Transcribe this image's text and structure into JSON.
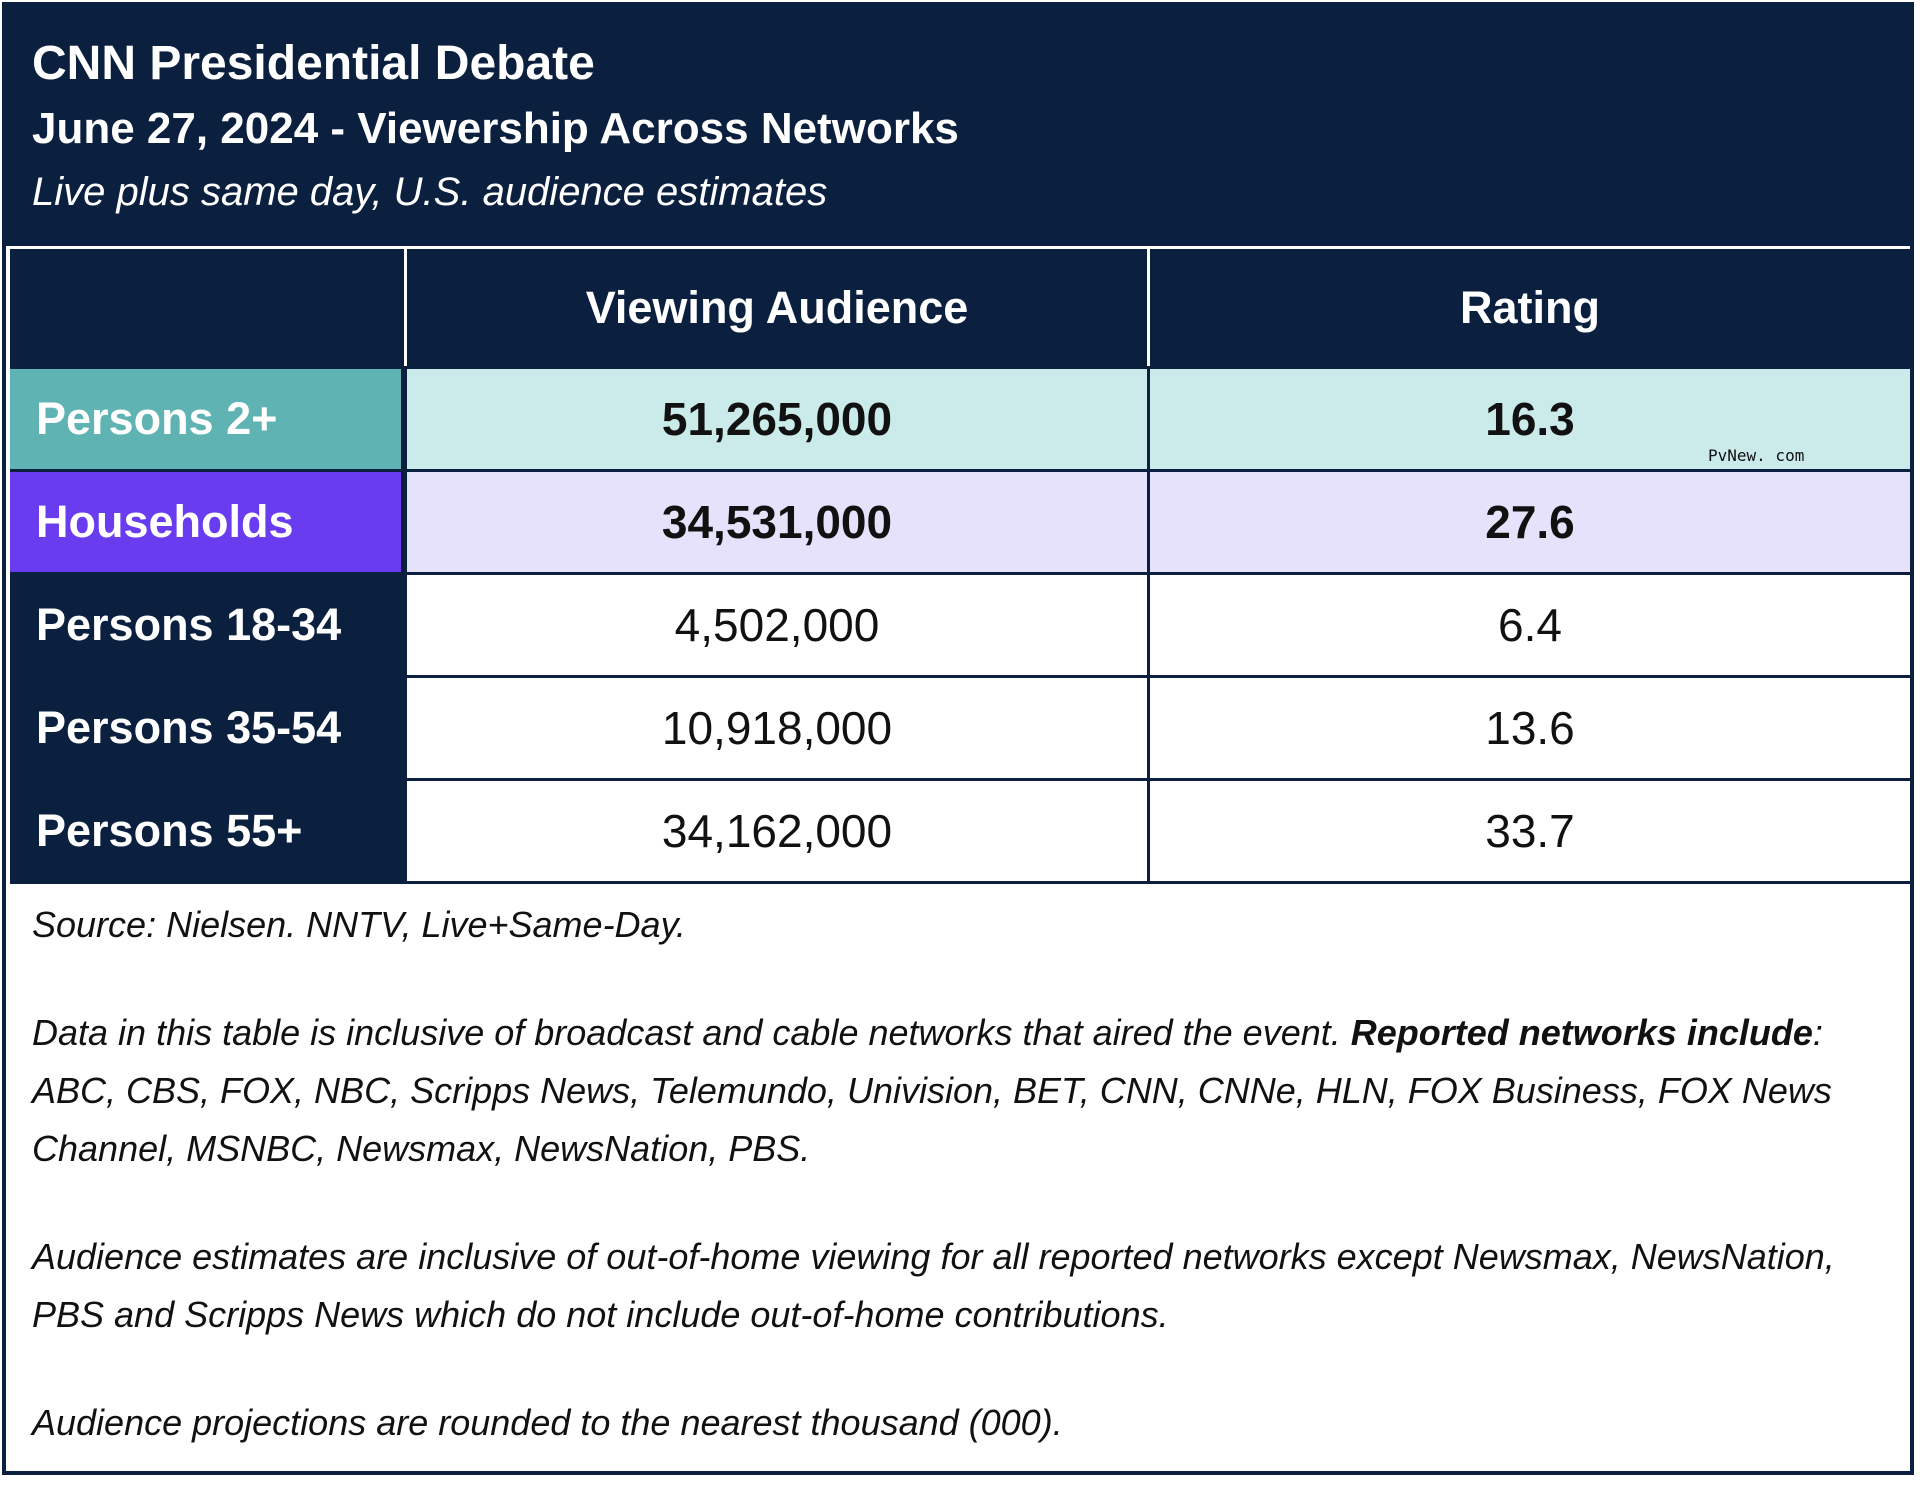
{
  "header": {
    "title": "CNN Presidential Debate",
    "subtitle": "June 27, 2024 - Viewership Across Networks",
    "caption": "Live plus same day, U.S. audience estimates"
  },
  "colors": {
    "navy": "#0b1f3f",
    "teal_label": "#5fb3b3",
    "teal_row": "#cbeaea",
    "violet_label": "#6a3cf0",
    "violet_row": "#e6e2fb",
    "white": "#ffffff"
  },
  "chart_data": {
    "type": "table",
    "title": "CNN Presidential Debate",
    "subtitle": "June 27, 2024 - Viewership Across Networks",
    "columns": [
      "",
      "Viewing Audience",
      "Rating"
    ],
    "rows": [
      {
        "label": "Persons 2+",
        "audience": "51,265,000",
        "rating": "16.3"
      },
      {
        "label": "Households",
        "audience": "34,531,000",
        "rating": "27.6"
      },
      {
        "label": "Persons 18-34",
        "audience": "4,502,000",
        "rating": "6.4"
      },
      {
        "label": "Persons 35-54",
        "audience": "10,918,000",
        "rating": "13.6"
      },
      {
        "label": "Persons 55+",
        "audience": "34,162,000",
        "rating": "33.7"
      }
    ]
  },
  "watermark": "PvNew. com",
  "notes": {
    "source": "Source: Nielsen. NNTV, Live+Same-Day.",
    "inclusive_intro": "Data in this table is inclusive of broadcast and cable networks that aired the event. ",
    "inclusive_bold_1": "Reported networks",
    "inclusive_bold_2": "include",
    "inclusive_list": ": ABC, CBS, FOX, NBC, Scripps News, Telemundo, Univision, BET, CNN, CNNe, HLN, FOX Business, FOX News Channel, MSNBC, Newsmax, NewsNation, PBS.",
    "out_of_home": "Audience estimates are inclusive of out-of-home viewing for all reported networks except Newsmax, NewsNation, PBS and Scripps News which do not include out-of-home contributions.",
    "rounding": "Audience projections are rounded to the nearest thousand (000)."
  }
}
